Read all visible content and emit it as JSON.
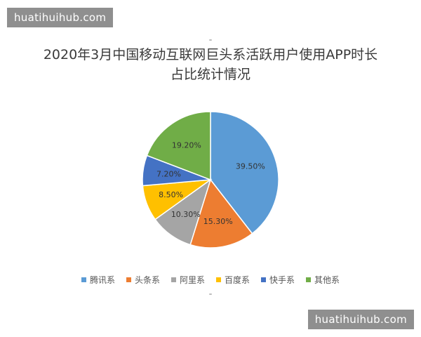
{
  "watermark": {
    "text": "huatihuihub.com"
  },
  "chart_data": {
    "type": "pie",
    "title_lines": [
      "2020年3月中国移动互联网巨头系活跃用户使用APP时长",
      "占比统计情况"
    ],
    "categories": [
      "腾讯系",
      "头条系",
      "阿里系",
      "百度系",
      "快手系",
      "其他系"
    ],
    "values": [
      39.5,
      15.3,
      10.3,
      8.5,
      7.2,
      19.2
    ],
    "labels": [
      "39.50%",
      "15.30%",
      "10.30%",
      "8.50%",
      "7.20%",
      "19.20%"
    ],
    "colors": [
      "#5b9bd5",
      "#ed7d31",
      "#a5a5a5",
      "#ffc000",
      "#4472c4",
      "#70ad47"
    ],
    "legend_position": "bottom"
  }
}
